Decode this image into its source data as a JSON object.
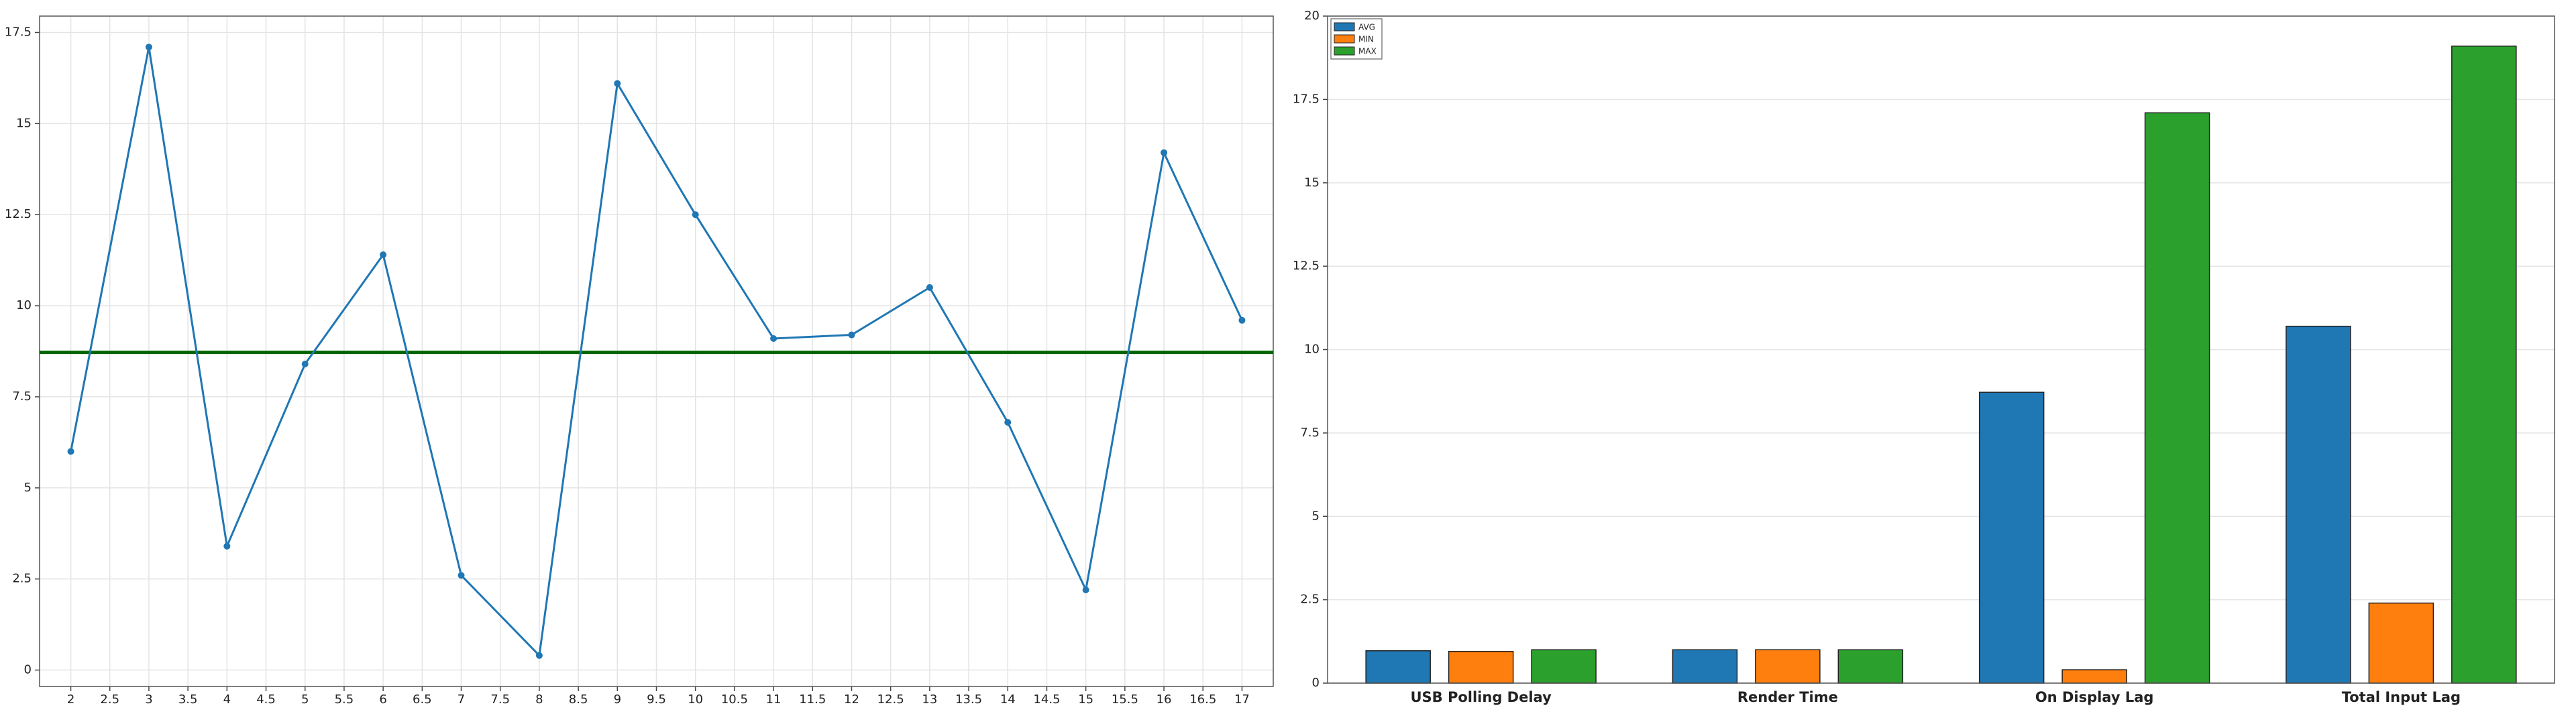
{
  "chart_data": [
    {
      "type": "line",
      "x": [
        2,
        3,
        4,
        5,
        6,
        7,
        8,
        9,
        10,
        11,
        12,
        13,
        14,
        15,
        16,
        17
      ],
      "series": [
        {
          "color": "#1f77b4",
          "values": [
            6.0,
            17.1,
            3.4,
            8.4,
            11.4,
            2.6,
            0.4,
            16.1,
            12.5,
            9.1,
            9.2,
            10.5,
            6.8,
            2.2,
            14.2,
            9.6
          ]
        }
      ],
      "reference_line": {
        "value": 8.72,
        "color": "#006400"
      },
      "xlim": [
        1.6,
        17.4
      ],
      "xticks": [
        2,
        2.5,
        3,
        3.5,
        4,
        4.5,
        5,
        5.5,
        6,
        6.5,
        7,
        7.5,
        8,
        8.5,
        9,
        9.5,
        10,
        10.5,
        11,
        11.5,
        12,
        12.5,
        13,
        13.5,
        14,
        14.5,
        15,
        15.5,
        16,
        16.5,
        17
      ],
      "ylim": [
        -0.45,
        17.95
      ],
      "yticks": [
        0,
        2.5,
        5,
        7.5,
        10,
        12.5,
        15,
        17.5
      ],
      "grid": true
    },
    {
      "type": "bar",
      "categories": [
        "USB Polling Delay",
        "Render Time",
        "On Display Lag",
        "Total Input Lag"
      ],
      "series": [
        {
          "name": "AVG",
          "color": "#1f77b4",
          "values": [
            0.97,
            1.0,
            8.72,
            10.7
          ]
        },
        {
          "name": "MIN",
          "color": "#ff7f0e",
          "values": [
            0.95,
            1.0,
            0.4,
            2.4
          ]
        },
        {
          "name": "MAX",
          "color": "#2ca02c",
          "values": [
            1.0,
            1.0,
            17.1,
            19.1
          ]
        }
      ],
      "ylim": [
        0,
        20
      ],
      "yticks": [
        0,
        2.5,
        5,
        7.5,
        10,
        12.5,
        15,
        17.5,
        20
      ],
      "legend": "upper left",
      "grid": true
    }
  ]
}
